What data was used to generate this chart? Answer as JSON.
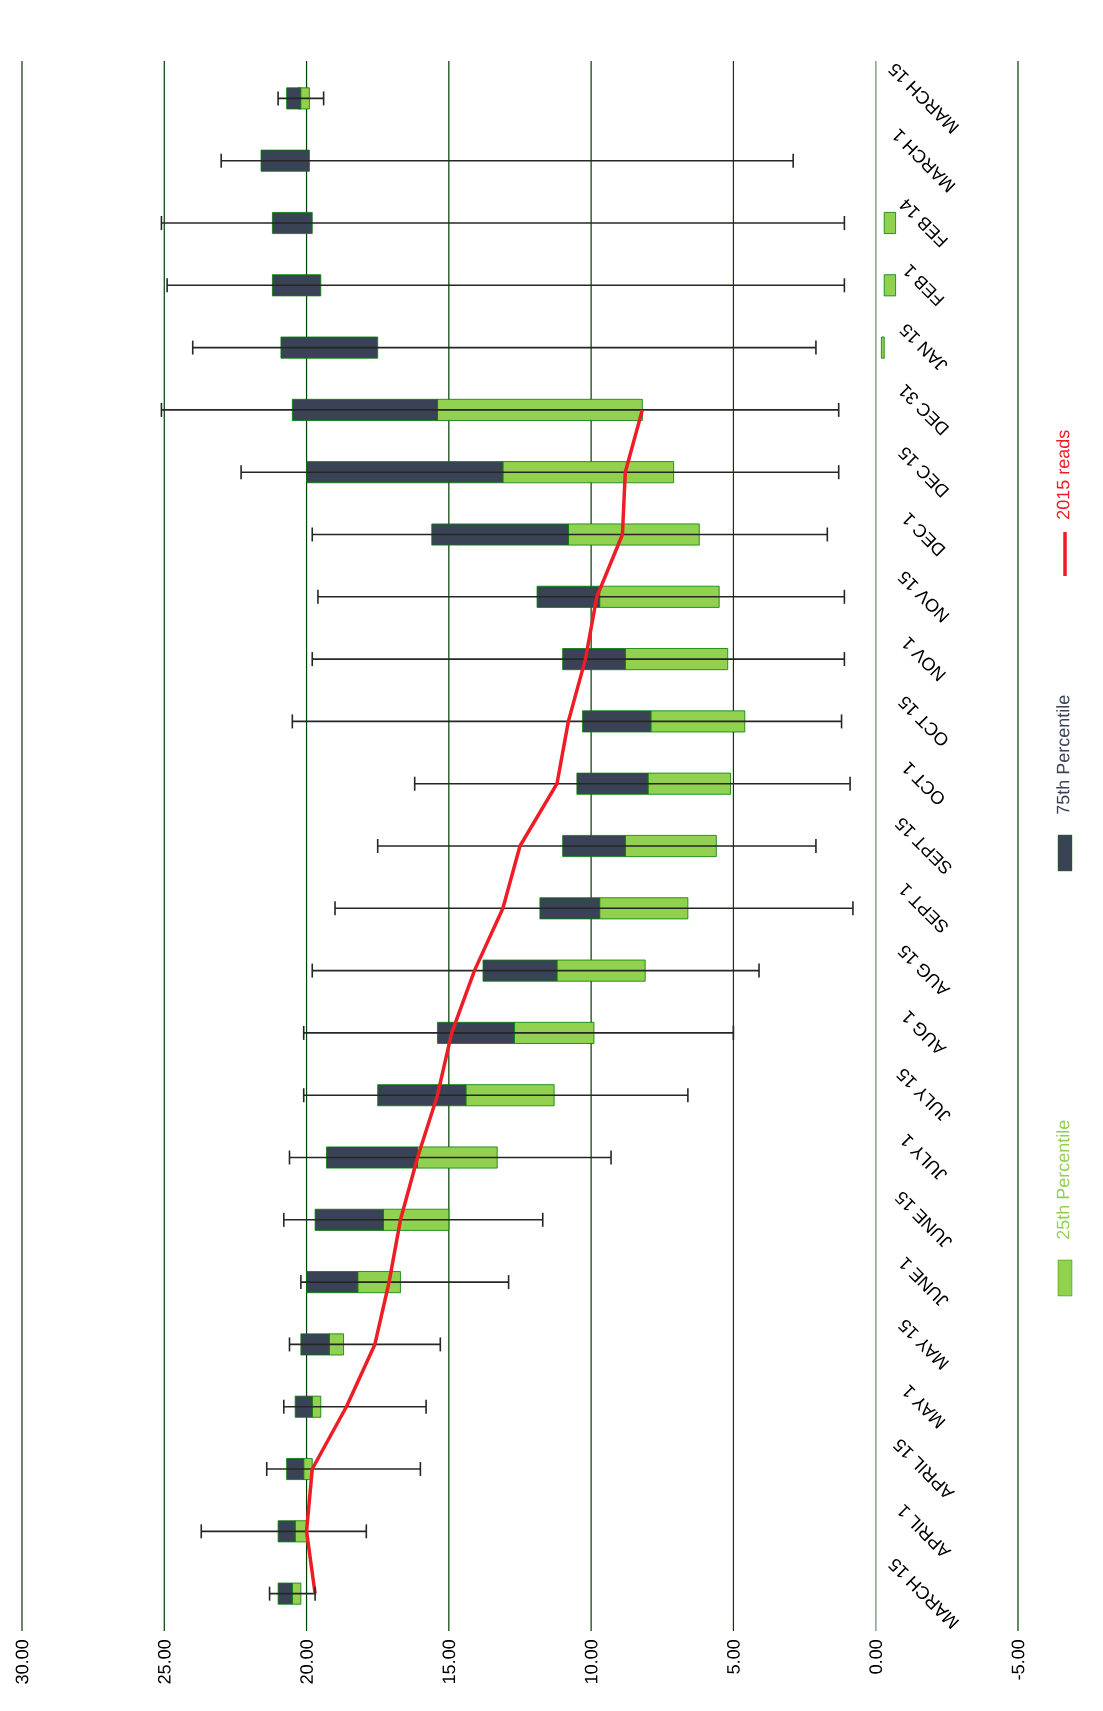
{
  "chart_data": {
    "type": "bar",
    "orientation": "horizontal",
    "categories": [
      "MARCH 15",
      "MARCH 1",
      "FEB 14",
      "FEB 1",
      "JAN 15",
      "DEC 31",
      "DEC 15",
      "DEC 1",
      "NOV 15",
      "NOV 1",
      "OCT 15",
      "OCT 1",
      "SEPT 15",
      "SEPT 1",
      "AUG 15",
      "AUG 1",
      "JULY 15",
      "JULY 1",
      "JUNE 15",
      "JUNE 1",
      "MAY 15",
      "MAY 1",
      "APRIL 15",
      "APRIL 1",
      "MARCH 15"
    ],
    "series": [
      {
        "name": "25th Percentile",
        "color": "#92d050",
        "base": [
          19.9,
          null,
          -0.7,
          -0.7,
          -0.3,
          8.2,
          7.1,
          6.2,
          5.5,
          5.2,
          4.6,
          5.1,
          5.6,
          6.6,
          8.1,
          9.9,
          11.3,
          13.3,
          15.0,
          16.7,
          18.7,
          19.5,
          19.8,
          20.0,
          20.2
        ],
        "values": [
          0.4,
          null,
          0.4,
          0.4,
          0.1,
          7.2,
          6.0,
          4.6,
          4.2,
          3.6,
          3.3,
          2.9,
          3.2,
          3.1,
          3.1,
          2.8,
          3.1,
          2.8,
          2.3,
          1.5,
          0.5,
          0.3,
          0.3,
          0.4,
          0.3
        ]
      },
      {
        "name": "75th Percentile",
        "color": "#3a4356",
        "base": [
          20.2,
          19.9,
          19.8,
          19.5,
          17.5,
          15.4,
          13.1,
          10.8,
          9.7,
          8.8,
          7.9,
          8.0,
          8.8,
          9.7,
          11.2,
          12.7,
          14.4,
          16.1,
          17.3,
          18.2,
          19.2,
          19.8,
          20.1,
          20.4,
          20.5
        ],
        "values": [
          0.5,
          1.7,
          1.4,
          1.7,
          3.4,
          5.1,
          6.9,
          4.8,
          2.2,
          2.2,
          2.4,
          2.5,
          2.2,
          2.1,
          2.6,
          2.7,
          3.1,
          3.2,
          2.4,
          1.8,
          1.0,
          0.6,
          0.6,
          0.6,
          0.5
        ],
        "errors": [
          [
            19.4,
            21.0
          ],
          [
            2.9,
            23.0
          ],
          [
            1.1,
            25.1
          ],
          [
            1.1,
            24.9
          ],
          [
            2.1,
            24.0
          ],
          [
            1.3,
            25.1
          ],
          [
            1.3,
            22.3
          ],
          [
            1.7,
            19.8
          ],
          [
            1.1,
            19.6
          ],
          [
            1.1,
            19.8
          ],
          [
            1.2,
            20.5
          ],
          [
            0.9,
            16.2
          ],
          [
            2.1,
            17.5
          ],
          [
            0.8,
            19.0
          ],
          [
            4.1,
            19.8
          ],
          [
            5.0,
            20.1
          ],
          [
            6.6,
            20.1
          ],
          [
            9.3,
            20.6
          ],
          [
            11.7,
            20.8
          ],
          [
            12.9,
            20.2
          ],
          [
            15.3,
            20.6
          ],
          [
            15.8,
            20.8
          ],
          [
            16.0,
            21.4
          ],
          [
            17.9,
            23.7
          ],
          [
            19.7,
            21.3
          ]
        ]
      },
      {
        "name": "2015 reads",
        "type": "line",
        "color": "#ee1c25",
        "values": [
          null,
          null,
          null,
          null,
          null,
          8.2,
          8.8,
          8.9,
          9.8,
          10.2,
          10.8,
          11.2,
          12.5,
          13.1,
          14.1,
          14.9,
          15.4,
          16.1,
          16.7,
          17.1,
          17.6,
          18.6,
          19.8,
          20.0,
          19.7
        ]
      }
    ],
    "xlim": [
      30,
      -5
    ],
    "xticks": [
      {
        "value": 30,
        "label": "30.00"
      },
      {
        "value": 25,
        "label": "25.00"
      },
      {
        "value": 20,
        "label": "20.00"
      },
      {
        "value": 15,
        "label": "15.00"
      },
      {
        "value": 10,
        "label": "10.00"
      },
      {
        "value": 5,
        "label": "5.00"
      },
      {
        "value": 0,
        "label": "0.00"
      },
      {
        "value": -5,
        "label": "-5.00"
      }
    ],
    "grid": "x",
    "legend": "right"
  }
}
